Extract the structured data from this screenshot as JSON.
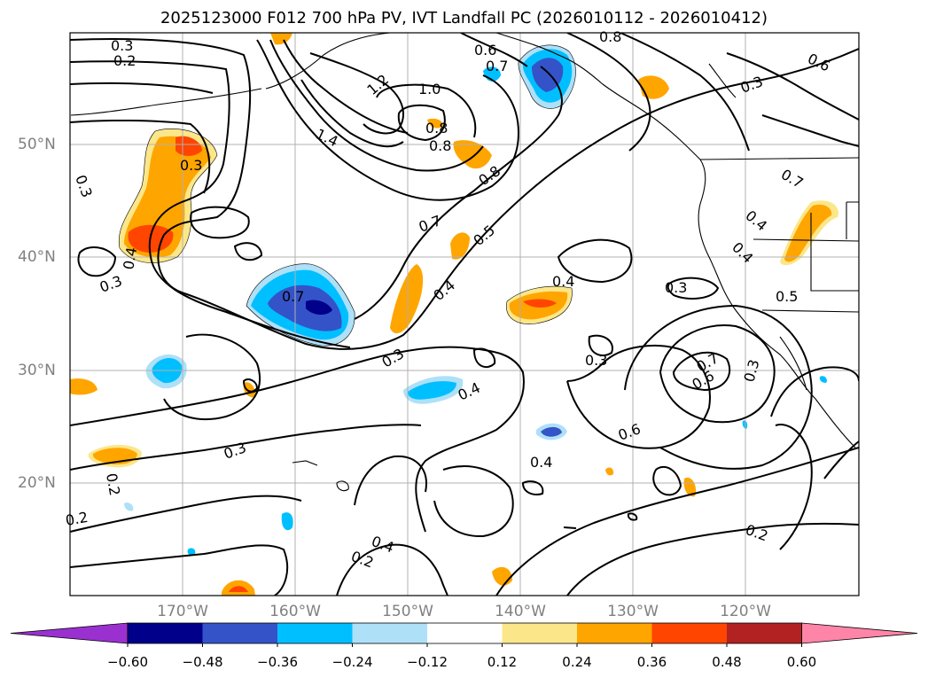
{
  "title": "2025123000 F012 700 hPa PV, IVT Landfall PC (2026010112 - 2026010412)",
  "lat_labels": [
    "50°N",
    "40°N",
    "30°N",
    "20°N"
  ],
  "lon_labels": [
    "170°W",
    "160°W",
    "150°W",
    "140°W",
    "130°W",
    "120°W"
  ],
  "contour_labels": [
    "0.3",
    "0.2",
    "0.6",
    "0.7",
    "0.8",
    "0.6",
    "1.2",
    "1.0",
    "1.4",
    "0.8",
    "0.8",
    "0.3",
    "0.3",
    "0.8",
    "0.7",
    "0.7",
    "0.5",
    "0.4",
    "0.4",
    "0.3",
    "0.5",
    "0.4",
    "0.3",
    "0.7",
    "0.3",
    "0.4",
    "0.4",
    "0.6",
    "0.7",
    "0.3",
    "0.3",
    "0.4",
    "0.2",
    "0.3",
    "0.3",
    "0.6",
    "0.4",
    "0.2",
    "0.4",
    "0.2",
    "0.2"
  ],
  "colorbar": {
    "colors": [
      "#9b30d0",
      "#00008b",
      "#3553c8",
      "#00bfff",
      "#aee0f8",
      "#ffffff",
      "#fbe78a",
      "#ffa500",
      "#ff4500",
      "#b22222",
      "#ff85a8"
    ],
    "ticks": [
      "−0.60",
      "−0.48",
      "−0.36",
      "−0.24",
      "−0.12",
      "0.12",
      "0.24",
      "0.36",
      "0.48",
      "0.60"
    ]
  }
}
